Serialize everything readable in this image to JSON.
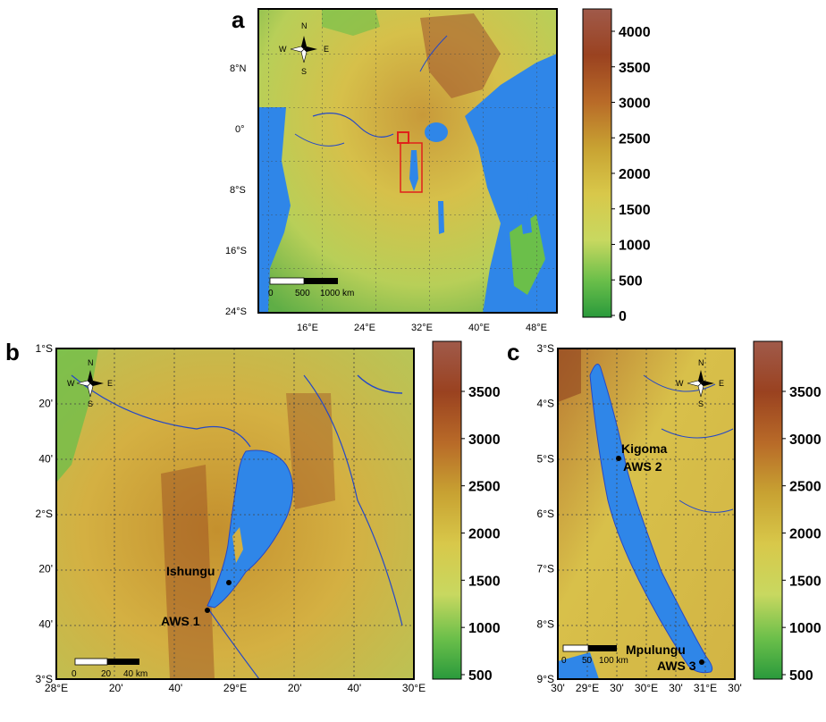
{
  "panels": {
    "a": {
      "letter": "a",
      "lon_ticks": [
        "16°E",
        "24°E",
        "32°E",
        "40°E",
        "48°E"
      ],
      "lat_ticks": [
        "8°N",
        "0°",
        "8°S",
        "16°S",
        "24°S"
      ],
      "colorbar_ticks": [
        "4000",
        "3500",
        "3000",
        "2500",
        "2000",
        "1500",
        "1000",
        "500",
        "0"
      ],
      "scale_labels": [
        "0",
        "500",
        "1000 km"
      ],
      "compass": {
        "n": "N",
        "s": "S",
        "e": "E",
        "w": "W"
      }
    },
    "b": {
      "letter": "b",
      "lon_ticks": [
        "28°E",
        "20'",
        "40'",
        "29°E",
        "20'",
        "40'",
        "30°E"
      ],
      "lat_ticks": [
        "1°S",
        "20'",
        "40'",
        "2°S",
        "20'",
        "40'",
        "3°S"
      ],
      "colorbar_ticks": [
        "3500",
        "3000",
        "2500",
        "2000",
        "1500",
        "1000",
        "500"
      ],
      "scale_labels": [
        "0",
        "20",
        "40 km"
      ],
      "compass": {
        "n": "N",
        "s": "S",
        "e": "E",
        "w": "W"
      },
      "station_name": "Ishungu",
      "station_id": "AWS 1"
    },
    "c": {
      "letter": "c",
      "lon_ticks": [
        "30'",
        "29°E",
        "30'",
        "30°E",
        "30'",
        "31°E",
        "30'"
      ],
      "lat_ticks": [
        "3°S",
        "4°S",
        "5°S",
        "6°S",
        "7°S",
        "8°S",
        "9°S"
      ],
      "colorbar_ticks": [
        "3500",
        "3000",
        "2500",
        "2000",
        "1500",
        "1000",
        "500"
      ],
      "scale_labels": [
        "0",
        "50",
        "100 km"
      ],
      "compass": {
        "n": "N",
        "s": "S",
        "e": "E",
        "w": "W"
      },
      "station1_name": "Kigoma",
      "station1_id": "AWS 2",
      "station2_name": "Mpulungu",
      "station2_id": "AWS 3"
    }
  },
  "colors": {
    "water": "#2f86e8",
    "river": "#2448c8",
    "low": "#2a9a3c",
    "mid": "#d8c84a",
    "high": "#8a3a1e",
    "inset": "#e0201a"
  }
}
